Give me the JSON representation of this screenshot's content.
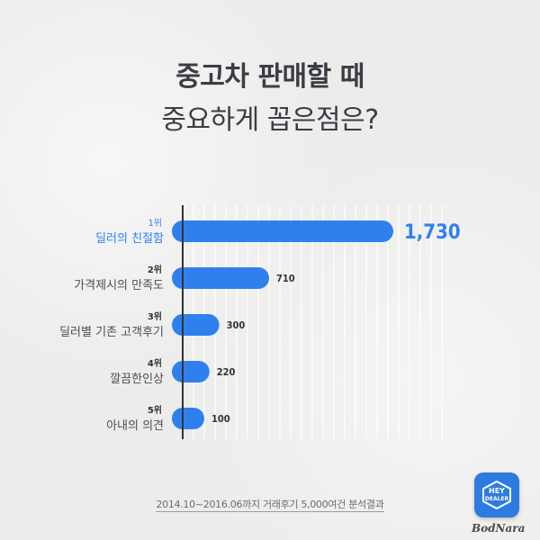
{
  "title": "중고차 판매할 때",
  "subtitle": "중요하게 꼽은점은?",
  "colors": {
    "bar": "#2f80ed",
    "highlight_text": "#2f80ed",
    "axis": "#333333",
    "label": "#4a4d55"
  },
  "chart_data": {
    "type": "bar",
    "orientation": "horizontal",
    "categories": [
      {
        "rank": "1위",
        "label": "딜러의 친절함",
        "value_label": "1,730"
      },
      {
        "rank": "2위",
        "label": "가격제시의 만족도",
        "value_label": "710"
      },
      {
        "rank": "3위",
        "label": "딜러별 기존 고객후기",
        "value_label": "300"
      },
      {
        "rank": "4위",
        "label": "깔끔한인상",
        "value_label": "220"
      },
      {
        "rank": "5위",
        "label": "아내의 의견",
        "value_label": "100"
      }
    ],
    "values": [
      1730,
      710,
      300,
      220,
      100
    ],
    "xlim": [
      0,
      1730
    ],
    "grid": true,
    "highlight_index": 0
  },
  "footnote": "2014.10~2016.06까지 거래후기 5,000여건 분석결과",
  "logo": {
    "line1": "HEY",
    "line2": "DEALER",
    "icon": "hex-badge-icon"
  },
  "watermark": "BodNara"
}
